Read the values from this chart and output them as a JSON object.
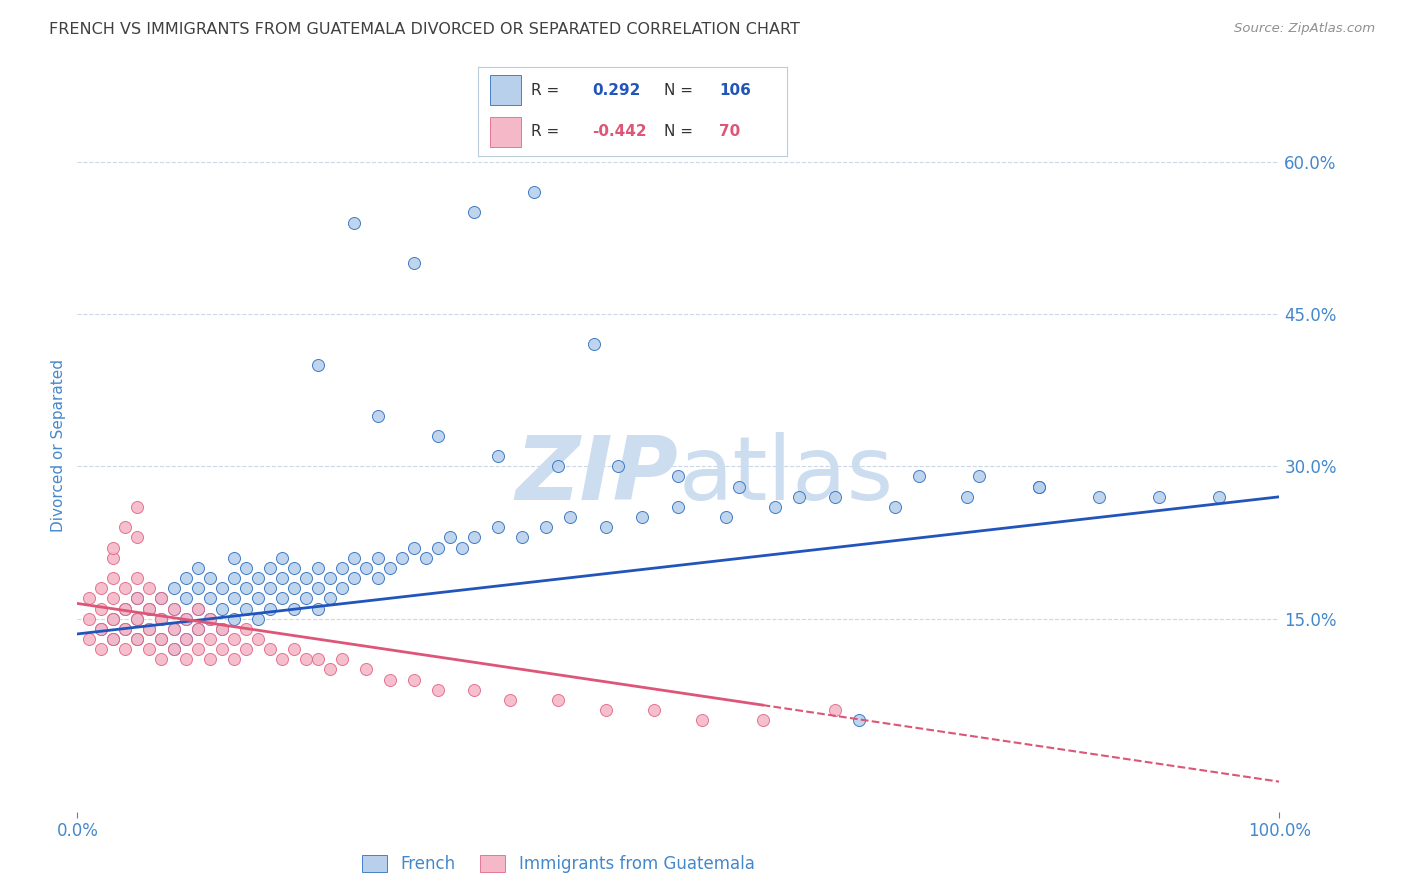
{
  "title": "FRENCH VS IMMIGRANTS FROM GUATEMALA DIVORCED OR SEPARATED CORRELATION CHART",
  "source": "Source: ZipAtlas.com",
  "ylabel": "Divorced or Separated",
  "y_tick_labels_right": [
    "15.0%",
    "30.0%",
    "45.0%",
    "60.0%"
  ],
  "y_tick_positions_right": [
    0.15,
    0.3,
    0.45,
    0.6
  ],
  "x_min": 0.0,
  "x_max": 1.0,
  "y_min": -0.04,
  "y_max": 0.68,
  "legend_label_blue": "French",
  "legend_label_pink": "Immigrants from Guatemala",
  "blue_fill": "#b8d0eb",
  "pink_fill": "#f5b8c8",
  "blue_edge": "#3070c0",
  "pink_edge": "#e06888",
  "blue_line": "#2255bb",
  "pink_line": "#dd5577",
  "title_color": "#404040",
  "source_color": "#909090",
  "axis_color": "#4488cc",
  "grid_color": "#ccd8e8",
  "background_color": "#ffffff",
  "watermark_color": "#ccddf0",
  "french_x": [
    0.02,
    0.03,
    0.03,
    0.04,
    0.04,
    0.05,
    0.05,
    0.05,
    0.06,
    0.06,
    0.07,
    0.07,
    0.07,
    0.08,
    0.08,
    0.08,
    0.08,
    0.09,
    0.09,
    0.09,
    0.09,
    0.1,
    0.1,
    0.1,
    0.1,
    0.11,
    0.11,
    0.11,
    0.12,
    0.12,
    0.12,
    0.13,
    0.13,
    0.13,
    0.13,
    0.14,
    0.14,
    0.14,
    0.15,
    0.15,
    0.15,
    0.16,
    0.16,
    0.16,
    0.17,
    0.17,
    0.17,
    0.18,
    0.18,
    0.18,
    0.19,
    0.19,
    0.2,
    0.2,
    0.2,
    0.21,
    0.21,
    0.22,
    0.22,
    0.23,
    0.23,
    0.24,
    0.25,
    0.25,
    0.26,
    0.27,
    0.28,
    0.29,
    0.3,
    0.31,
    0.32,
    0.33,
    0.35,
    0.37,
    0.39,
    0.41,
    0.44,
    0.47,
    0.5,
    0.54,
    0.58,
    0.63,
    0.68,
    0.74,
    0.8,
    0.23,
    0.28,
    0.33,
    0.38,
    0.43,
    0.2,
    0.25,
    0.3,
    0.35,
    0.4,
    0.45,
    0.5,
    0.55,
    0.6,
    0.65,
    0.7,
    0.75,
    0.8,
    0.85,
    0.9,
    0.95
  ],
  "french_y": [
    0.14,
    0.13,
    0.15,
    0.14,
    0.16,
    0.13,
    0.15,
    0.17,
    0.14,
    0.16,
    0.13,
    0.15,
    0.17,
    0.12,
    0.14,
    0.16,
    0.18,
    0.13,
    0.15,
    0.17,
    0.19,
    0.14,
    0.16,
    0.18,
    0.2,
    0.15,
    0.17,
    0.19,
    0.14,
    0.16,
    0.18,
    0.15,
    0.17,
    0.19,
    0.21,
    0.16,
    0.18,
    0.2,
    0.15,
    0.17,
    0.19,
    0.16,
    0.18,
    0.2,
    0.17,
    0.19,
    0.21,
    0.16,
    0.18,
    0.2,
    0.17,
    0.19,
    0.16,
    0.18,
    0.2,
    0.17,
    0.19,
    0.18,
    0.2,
    0.19,
    0.21,
    0.2,
    0.19,
    0.21,
    0.2,
    0.21,
    0.22,
    0.21,
    0.22,
    0.23,
    0.22,
    0.23,
    0.24,
    0.23,
    0.24,
    0.25,
    0.24,
    0.25,
    0.26,
    0.25,
    0.26,
    0.27,
    0.26,
    0.27,
    0.28,
    0.54,
    0.5,
    0.55,
    0.57,
    0.42,
    0.4,
    0.35,
    0.33,
    0.31,
    0.3,
    0.3,
    0.29,
    0.28,
    0.27,
    0.05,
    0.29,
    0.29,
    0.28,
    0.27,
    0.27,
    0.27
  ],
  "guatemala_x": [
    0.01,
    0.01,
    0.01,
    0.02,
    0.02,
    0.02,
    0.02,
    0.03,
    0.03,
    0.03,
    0.03,
    0.03,
    0.04,
    0.04,
    0.04,
    0.04,
    0.05,
    0.05,
    0.05,
    0.05,
    0.05,
    0.06,
    0.06,
    0.06,
    0.06,
    0.07,
    0.07,
    0.07,
    0.07,
    0.08,
    0.08,
    0.08,
    0.09,
    0.09,
    0.09,
    0.1,
    0.1,
    0.1,
    0.11,
    0.11,
    0.11,
    0.12,
    0.12,
    0.13,
    0.13,
    0.14,
    0.14,
    0.15,
    0.16,
    0.17,
    0.18,
    0.19,
    0.2,
    0.21,
    0.22,
    0.24,
    0.26,
    0.28,
    0.3,
    0.33,
    0.36,
    0.4,
    0.44,
    0.48,
    0.52,
    0.57,
    0.63,
    0.03,
    0.04,
    0.05
  ],
  "guatemala_y": [
    0.15,
    0.17,
    0.13,
    0.14,
    0.16,
    0.18,
    0.12,
    0.13,
    0.15,
    0.17,
    0.19,
    0.21,
    0.14,
    0.16,
    0.18,
    0.12,
    0.13,
    0.15,
    0.17,
    0.19,
    0.23,
    0.14,
    0.16,
    0.12,
    0.18,
    0.13,
    0.15,
    0.17,
    0.11,
    0.14,
    0.16,
    0.12,
    0.13,
    0.15,
    0.11,
    0.14,
    0.16,
    0.12,
    0.13,
    0.15,
    0.11,
    0.14,
    0.12,
    0.13,
    0.11,
    0.12,
    0.14,
    0.13,
    0.12,
    0.11,
    0.12,
    0.11,
    0.11,
    0.1,
    0.11,
    0.1,
    0.09,
    0.09,
    0.08,
    0.08,
    0.07,
    0.07,
    0.06,
    0.06,
    0.05,
    0.05,
    0.06,
    0.22,
    0.24,
    0.26
  ]
}
